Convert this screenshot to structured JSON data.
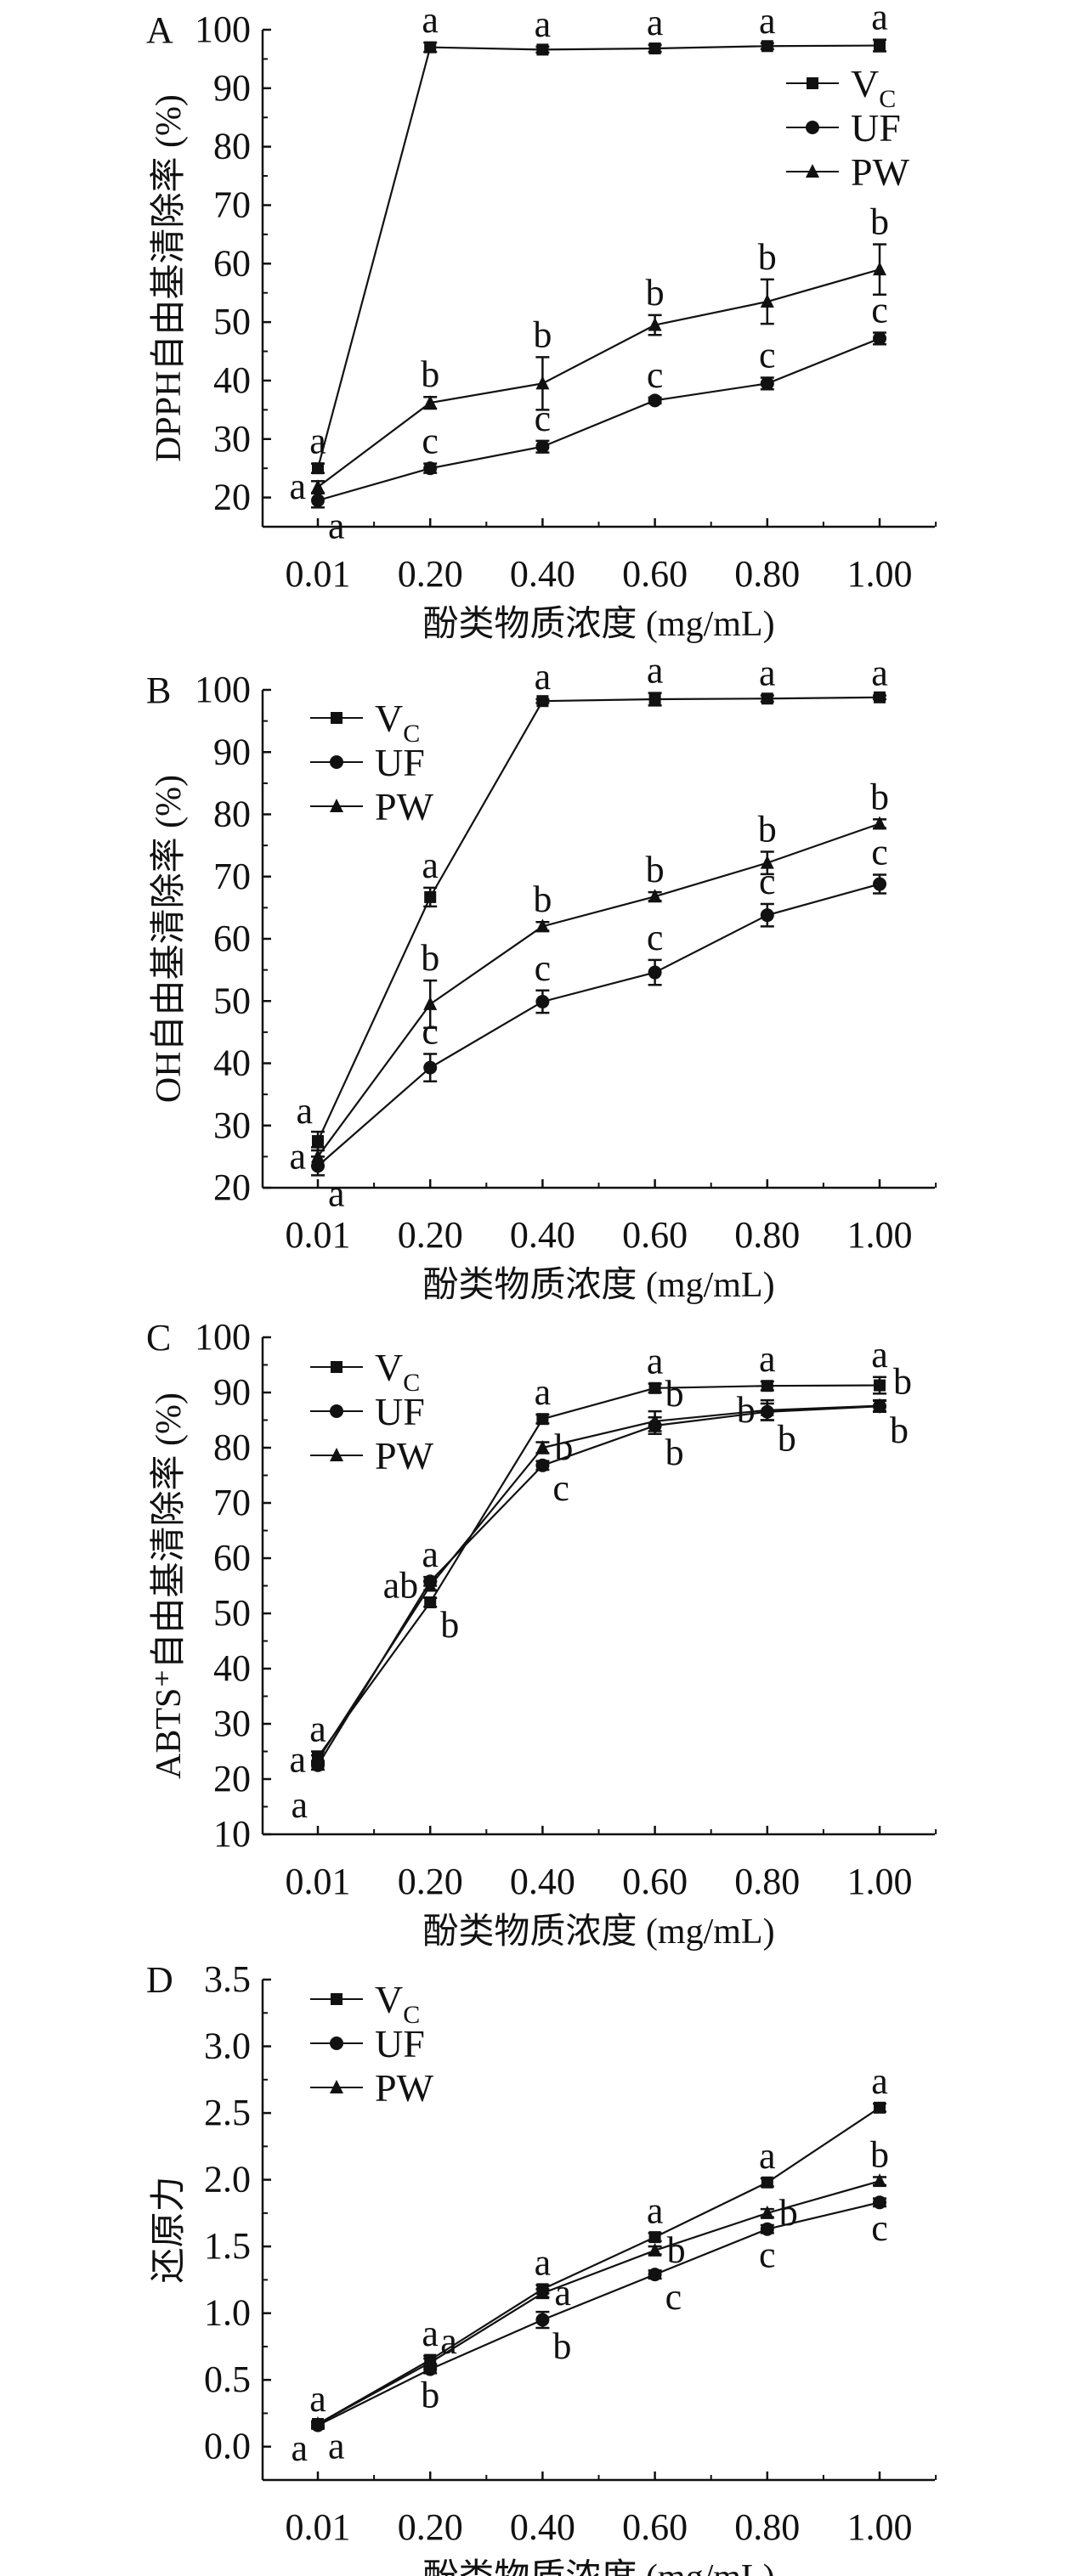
{
  "chart_data": [
    {
      "panel": "A",
      "type": "line",
      "categories": [
        "0.01",
        "0.20",
        "0.40",
        "0.60",
        "0.80",
        "1.00"
      ],
      "xlabel": "酚类物质浓度 (mg/mL)",
      "ylabel": "DPPH自由基清除率 (%)",
      "ylim": [
        15,
        100
      ],
      "yticks": [
        20,
        30,
        40,
        50,
        60,
        70,
        80,
        90,
        100
      ],
      "legend": "top-right",
      "series": [
        {
          "name": "VC",
          "marker": "square",
          "values": [
            25,
            97,
            96.6,
            96.8,
            97.2,
            97.3
          ],
          "err": [
            0.8,
            0.8,
            0.5,
            0.6,
            0.5,
            1.0
          ],
          "letters": [
            "a",
            "a",
            "a",
            "a",
            "a",
            "a"
          ]
        },
        {
          "name": "UF",
          "marker": "circle",
          "values": [
            19.5,
            25,
            28.7,
            36.6,
            39.5,
            47.2
          ],
          "err": [
            1.2,
            0.8,
            1.0,
            0.5,
            1.0,
            1.0
          ],
          "letters": [
            "a",
            "c",
            "c",
            "c",
            "c",
            "c"
          ]
        },
        {
          "name": "PW",
          "marker": "triangle",
          "values": [
            21.8,
            36.2,
            39.5,
            49.5,
            53.5,
            59
          ],
          "err": [
            1.0,
            1.0,
            4.5,
            1.7,
            3.8,
            4.3
          ],
          "letters": [
            "a",
            "b",
            "b",
            "b",
            "b",
            "b"
          ]
        }
      ]
    },
    {
      "panel": "B",
      "type": "line",
      "categories": [
        "0.01",
        "0.20",
        "0.40",
        "0.60",
        "0.80",
        "1.00"
      ],
      "xlabel": "酚类物质浓度 (mg/mL)",
      "ylabel": "OH自由基清除率 (%)",
      "ylim": [
        20,
        100
      ],
      "yticks": [
        20,
        30,
        40,
        50,
        60,
        70,
        80,
        90,
        100
      ],
      "legend": "top-left",
      "series": [
        {
          "name": "VC",
          "marker": "square",
          "values": [
            27.5,
            66.7,
            98.2,
            98.5,
            98.6,
            98.8
          ],
          "err": [
            1.5,
            1.5,
            0.3,
            1.0,
            0.5,
            0.3
          ],
          "letters": [
            "a",
            "a",
            "a",
            "a",
            "a",
            "a"
          ]
        },
        {
          "name": "UF",
          "marker": "circle",
          "values": [
            23.5,
            39.3,
            49.9,
            54.6,
            63.8,
            68.8
          ],
          "err": [
            1.5,
            2.2,
            1.8,
            2.0,
            1.8,
            1.5
          ],
          "letters": [
            "a",
            "c",
            "c",
            "c",
            "c",
            "c"
          ]
        },
        {
          "name": "PW",
          "marker": "triangle",
          "values": [
            25,
            49.5,
            62,
            66.8,
            72.2,
            78.5
          ],
          "err": [
            1.5,
            3.8,
            0.7,
            0.7,
            1.8,
            0.7
          ],
          "letters": [
            "a",
            "b",
            "b",
            "b",
            "b",
            "b"
          ]
        }
      ]
    },
    {
      "panel": "C",
      "type": "line",
      "categories": [
        "0.01",
        "0.20",
        "0.40",
        "0.60",
        "0.80",
        "1.00"
      ],
      "xlabel": "酚类物质浓度 (mg/mL)",
      "ylabel": "ABTS⁺自由基清除率 (%)",
      "ylim": [
        10,
        100
      ],
      "yticks": [
        10,
        20,
        30,
        40,
        50,
        60,
        70,
        80,
        90,
        100
      ],
      "legend": "top-left",
      "series": [
        {
          "name": "VC",
          "marker": "square",
          "values": [
            24,
            52,
            85.2,
            90.8,
            91.2,
            91.3
          ],
          "err": [
            1.0,
            0.8,
            0.8,
            0.8,
            0.8,
            1.5
          ],
          "letters": [
            "a",
            "b",
            "a",
            "a",
            "a",
            "a"
          ]
        },
        {
          "name": "UF",
          "marker": "circle",
          "values": [
            22.5,
            55.8,
            76.8,
            84,
            86.5,
            87.5
          ],
          "err": [
            0.8,
            0.8,
            0.8,
            1.5,
            1.5,
            1.0
          ],
          "letters": [
            "a",
            "a",
            "c",
            "b",
            "b",
            "b"
          ]
        },
        {
          "name": "PW",
          "marker": "triangle",
          "values": [
            23.5,
            55,
            80,
            84.8,
            86.8,
            87.6
          ],
          "err": [
            0.8,
            0.8,
            1.0,
            1.8,
            1.8,
            1.0
          ],
          "letters": [
            "a",
            "ab",
            "b",
            "b",
            "b",
            "b"
          ]
        }
      ]
    },
    {
      "panel": "D",
      "type": "line",
      "categories": [
        "0.01",
        "0.20",
        "0.40",
        "0.60",
        "0.80",
        "1.00"
      ],
      "xlabel": "酚类物质浓度 (mg/mL)",
      "ylabel": "还原力",
      "ylim": [
        -0.25,
        3.5
      ],
      "yticks": [
        0.0,
        0.5,
        1.0,
        1.5,
        2.0,
        2.5,
        3.0,
        3.5
      ],
      "legend": "top-left",
      "series": [
        {
          "name": "VC",
          "marker": "square",
          "values": [
            0.17,
            0.65,
            1.18,
            1.57,
            1.98,
            2.54
          ],
          "err": [
            0.02,
            0.03,
            0.03,
            0.03,
            0.03,
            0.03
          ],
          "letters": [
            "a",
            "a",
            "a",
            "a",
            "a",
            "a"
          ]
        },
        {
          "name": "UF",
          "marker": "circle",
          "values": [
            0.16,
            0.58,
            0.95,
            1.29,
            1.63,
            1.83
          ],
          "err": [
            0.02,
            0.03,
            0.06,
            0.03,
            0.03,
            0.03
          ],
          "letters": [
            "a",
            "b",
            "b",
            "c",
            "c",
            "c"
          ]
        },
        {
          "name": "PW",
          "marker": "triangle",
          "values": [
            0.17,
            0.63,
            1.15,
            1.47,
            1.75,
            1.99
          ],
          "err": [
            0.02,
            0.03,
            0.03,
            0.03,
            0.03,
            0.03
          ],
          "letters": [
            "a",
            "a",
            "a",
            "b",
            "b",
            "b"
          ]
        }
      ]
    }
  ]
}
